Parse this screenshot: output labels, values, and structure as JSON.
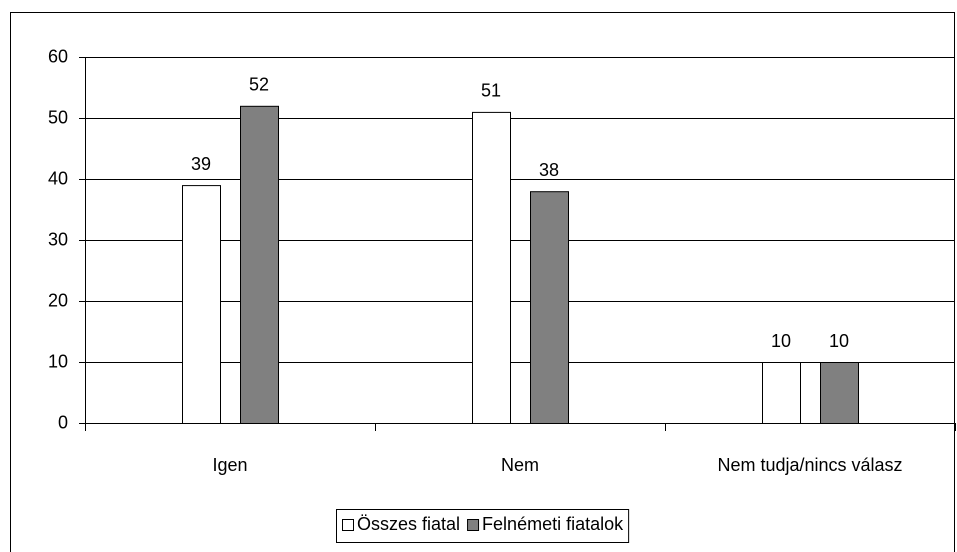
{
  "chart_data": {
    "type": "bar",
    "categories": [
      "Igen",
      "Nem",
      "Nem tudja/nincs válasz"
    ],
    "series": [
      {
        "name": "Összes fiatal",
        "color": "#ffffff",
        "values": [
          39,
          51,
          10
        ]
      },
      {
        "name": "Felnémeti fiatalok",
        "color": "#808080",
        "values": [
          52,
          38,
          10
        ]
      }
    ],
    "ylim": [
      0,
      60
    ],
    "yticks": [
      0,
      10,
      20,
      30,
      40,
      50,
      60
    ],
    "grid": true,
    "legend": "bottom"
  }
}
